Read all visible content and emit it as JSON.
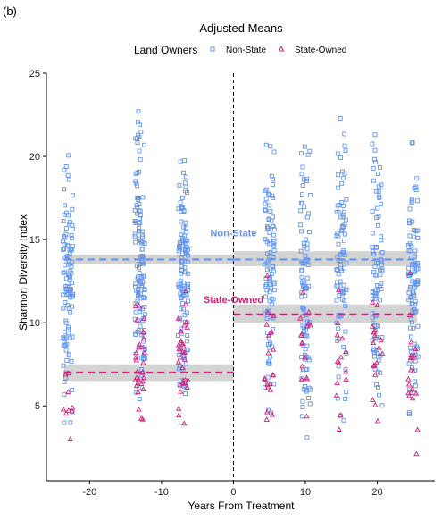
{
  "chart_data": {
    "type": "scatter",
    "panel_tag": "(b)",
    "title": "Adjusted Means",
    "legend": {
      "title": "Land Owners",
      "placement": "top",
      "entries": [
        {
          "label": "Non-State",
          "marker": "square",
          "color": "#6495ED"
        },
        {
          "label": "State-Owned",
          "marker": "triangle",
          "color": "#D0207A"
        }
      ]
    },
    "xlabel": "Years From Treatment",
    "ylabel": "Shannon Diversity Index",
    "xlim": [
      -26,
      28
    ],
    "ylim": [
      0.5,
      25
    ],
    "xticks": [
      -20,
      -10,
      0,
      10,
      20
    ],
    "yticks": [
      5,
      10,
      15,
      20,
      25
    ],
    "grid": false,
    "treatment_line_x": 0,
    "series": [
      {
        "name": "Non-State",
        "color": "#6495ED",
        "marker": "square",
        "columns": [
          {
            "x": -23,
            "ymin": 3.0,
            "ymax": 20.3,
            "n": 110
          },
          {
            "x": -13,
            "ymin": 2.7,
            "ymax": 23.5,
            "n": 130
          },
          {
            "x": -7,
            "ymin": 3.8,
            "ymax": 21.0,
            "n": 120
          },
          {
            "x": 5,
            "ymin": 2.2,
            "ymax": 21.5,
            "n": 95
          },
          {
            "x": 10,
            "ymin": 1.8,
            "ymax": 21.7,
            "n": 95
          },
          {
            "x": 15,
            "ymin": 1.7,
            "ymax": 23.9,
            "n": 90
          },
          {
            "x": 20,
            "ymin": 2.1,
            "ymax": 22.0,
            "n": 90
          },
          {
            "x": 25,
            "ymin": 2.4,
            "ymax": 21.6,
            "n": 100
          }
        ],
        "adjusted_means": [
          {
            "x_from": -23.5,
            "x_to": 0,
            "y": 13.8,
            "ci": [
              13.5,
              14.1
            ]
          },
          {
            "x_from": 0,
            "x_to": 25.5,
            "y": 13.8,
            "ci": [
              13.4,
              14.3
            ]
          }
        ]
      },
      {
        "name": "State-Owned",
        "color": "#D0207A",
        "marker": "triangle",
        "columns": [
          {
            "x": -23,
            "ymin": 2.4,
            "ymax": 8.4,
            "n": 9
          },
          {
            "x": -13,
            "ymin": 2.7,
            "ymax": 12.6,
            "n": 30
          },
          {
            "x": -7,
            "ymin": 2.1,
            "ymax": 12.6,
            "n": 30
          },
          {
            "x": 5,
            "ymin": 1.5,
            "ymax": 13.8,
            "n": 20
          },
          {
            "x": 10,
            "ymin": 1.6,
            "ymax": 13.5,
            "n": 16
          },
          {
            "x": 15,
            "ymin": 3.0,
            "ymax": 13.2,
            "n": 14
          },
          {
            "x": 20,
            "ymin": 2.8,
            "ymax": 13.7,
            "n": 18
          },
          {
            "x": 25,
            "ymin": 1.8,
            "ymax": 13.6,
            "n": 20
          }
        ],
        "adjusted_means": [
          {
            "x_from": -23.5,
            "x_to": 0,
            "y": 7.0,
            "ci": [
              6.5,
              7.5
            ]
          },
          {
            "x_from": 0,
            "x_to": 25.5,
            "y": 10.5,
            "ci": [
              10.0,
              11.1
            ]
          }
        ]
      }
    ],
    "annotations": [
      {
        "text": "Non-State",
        "x": 0,
        "y": 15.2,
        "color": "#6495ED"
      },
      {
        "text": "State-Owned",
        "x": 0,
        "y": 11.2,
        "color": "#D0207A"
      }
    ]
  }
}
